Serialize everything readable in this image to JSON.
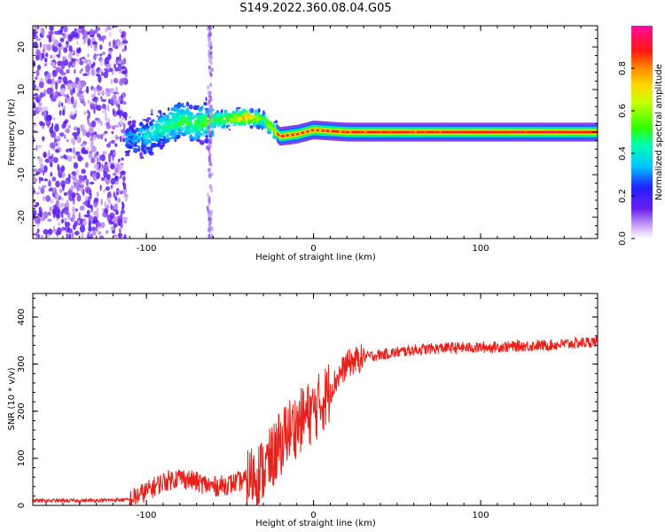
{
  "title": "S149.2022.360.08.04.G05",
  "chart_data": [
    {
      "type": "heatmap",
      "xlabel": "Height of straight line (km)",
      "ylabel": "Frequency (Hz)",
      "xlim": [
        -168,
        170
      ],
      "ylim": [
        -25,
        25
      ],
      "x_ticks": [
        -100,
        0,
        100
      ],
      "y_ticks": [
        -20,
        -10,
        0,
        10,
        20
      ],
      "colorbar": {
        "label": "Normalized spectral amplitude",
        "range": [
          0,
          1
        ],
        "ticks": [
          0.0,
          0.2,
          0.4,
          0.6,
          0.8
        ],
        "colormap": "rainbow (purple-blue-cyan-green-yellow-orange-red-magenta)"
      },
      "ridge": [
        {
          "x": -110,
          "freq": -1.5,
          "amp": 0.3
        },
        {
          "x": -100,
          "freq": -1.0,
          "amp": 0.4
        },
        {
          "x": -90,
          "freq": 1.0,
          "amp": 0.45
        },
        {
          "x": -80,
          "freq": 2.5,
          "amp": 0.5
        },
        {
          "x": -70,
          "freq": 2.0,
          "amp": 0.5
        },
        {
          "x": -60,
          "freq": 3.0,
          "amp": 0.55
        },
        {
          "x": -50,
          "freq": 3.0,
          "amp": 0.6
        },
        {
          "x": -40,
          "freq": 3.5,
          "amp": 0.8
        },
        {
          "x": -30,
          "freq": 3.0,
          "amp": 0.55
        },
        {
          "x": -20,
          "freq": -1.0,
          "amp": 0.7
        },
        {
          "x": -10,
          "freq": -0.5,
          "amp": 0.6
        },
        {
          "x": 0,
          "freq": 0.5,
          "amp": 0.7
        },
        {
          "x": 20,
          "freq": 0.0,
          "amp": 0.85
        },
        {
          "x": 50,
          "freq": 0.0,
          "amp": 0.9
        },
        {
          "x": 100,
          "freq": 0.0,
          "amp": 0.95
        },
        {
          "x": 170,
          "freq": 0.0,
          "amp": 0.95
        }
      ]
    },
    {
      "type": "line",
      "xlabel": "Height of straight line (km)",
      "ylabel": "SNR (10 * v/v)",
      "xlim": [
        -168,
        170
      ],
      "ylim": [
        0,
        450
      ],
      "x_ticks": [
        -100,
        0,
        100
      ],
      "y_ticks": [
        0,
        100,
        200,
        300,
        400
      ],
      "series": [
        {
          "color": "#e8201a",
          "x": [
            -168,
            -140,
            -110,
            -100,
            -90,
            -80,
            -70,
            -60,
            -50,
            -40,
            -30,
            -25,
            -20,
            -15,
            -10,
            -5,
            0,
            5,
            10,
            15,
            20,
            30,
            40,
            50,
            60,
            80,
            100,
            120,
            140,
            160,
            170
          ],
          "y": [
            10,
            10,
            12,
            30,
            50,
            60,
            50,
            40,
            45,
            55,
            75,
            100,
            130,
            160,
            170,
            190,
            200,
            220,
            245,
            275,
            300,
            315,
            320,
            325,
            330,
            335,
            335,
            338,
            340,
            345,
            348
          ]
        }
      ]
    }
  ]
}
